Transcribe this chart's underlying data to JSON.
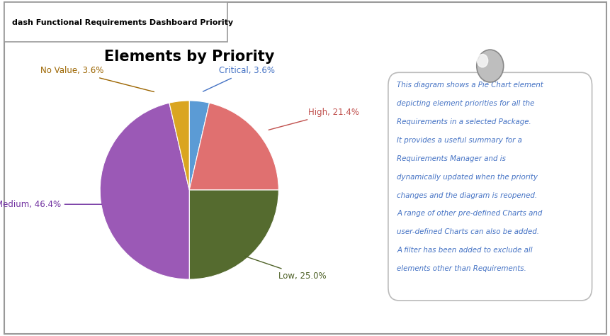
{
  "title": "Elements by Priority",
  "tab_label": "dash Functional Requirements Dashboard Priority",
  "slices": [
    {
      "label": "Critical",
      "value": 3.6,
      "color": "#5B9BD5",
      "text_color": "#4472C4"
    },
    {
      "label": "High",
      "value": 21.4,
      "color": "#E07070",
      "text_color": "#C0504D"
    },
    {
      "label": "Low",
      "value": 25.0,
      "color": "#556B2F",
      "text_color": "#4F6228"
    },
    {
      "label": "Medium",
      "value": 46.4,
      "color": "#9B59B6",
      "text_color": "#7030A0"
    },
    {
      "label": "No Value",
      "value": 3.6,
      "color": "#DAA520",
      "text_color": "#9C6500"
    }
  ],
  "note_lines": [
    "This diagram shows a Pie Chart element",
    "depicting element priorities for all the",
    "Requirements in a selected Package.",
    "It provides a useful summary for a",
    "Requirements Manager and is",
    "dynamically updated when the priority",
    "changes and the diagram is reopened.",
    "A range of other pre-defined Charts and",
    "user-defined Charts can also be added.",
    "A filter has been added to exclude all",
    "elements other than Requirements."
  ],
  "note_text_color": "#4472C4",
  "background_color": "#FFFFFF"
}
